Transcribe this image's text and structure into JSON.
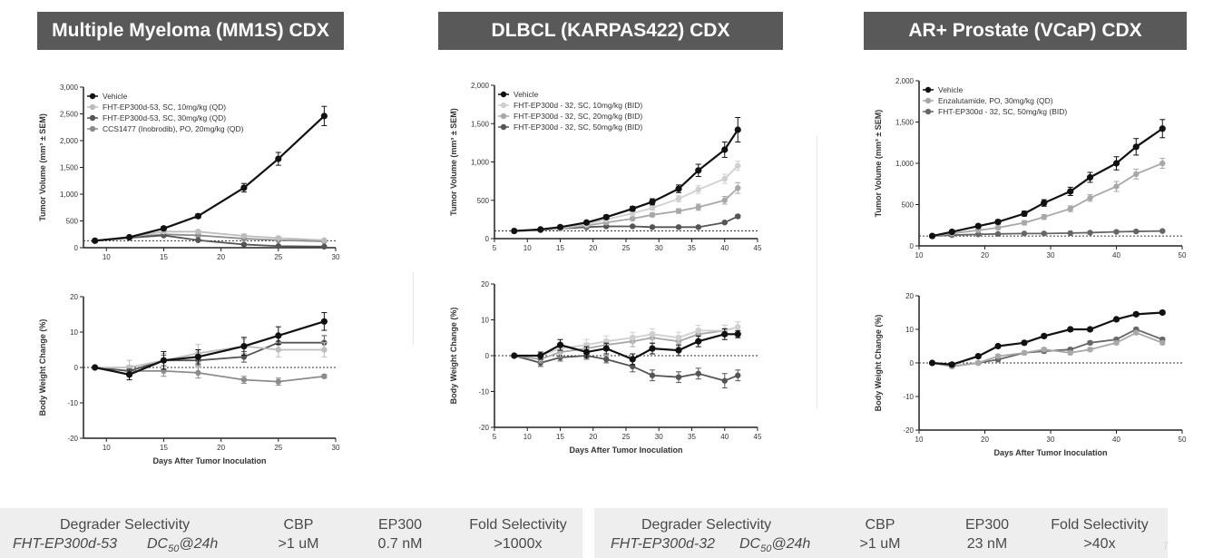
{
  "colors": {
    "banner": "#595959",
    "vehicle": "#111111",
    "dark_gray": "#555555",
    "mid_gray": "#8c8c8c",
    "light_gray": "#bdbdbd",
    "table_bg": "#eeeeee"
  },
  "panels": [
    {
      "title": "Multiple Myeloma (MM1S) CDX",
      "xlabel": "Days After Tumor Inoculation"
    },
    {
      "title": "DLBCL (KARPAS422) CDX",
      "xlabel": "Days After Tumor Inoculation"
    },
    {
      "title": "AR+ Prostate (VCaP) CDX",
      "xlabel": "Days After Tumor Inoculation"
    }
  ],
  "selectivity": [
    {
      "heading": "Degrader Selectivity",
      "compound": "FHT-EP300d-53",
      "dc50": "DC",
      "dc50_sub": "50",
      "dc50_suffix": "@24h",
      "cols": [
        {
          "header": "CBP",
          "value": ">1 uM"
        },
        {
          "header": "EP300",
          "value": "0.7 nM"
        },
        {
          "header": "Fold Selectivity",
          "value": ">1000x"
        }
      ]
    },
    {
      "heading": "Degrader Selectivity",
      "compound": "FHT-EP300d-32",
      "dc50": "DC",
      "dc50_sub": "50",
      "dc50_suffix": "@24h",
      "cols": [
        {
          "header": "CBP",
          "value": ">1 uM"
        },
        {
          "header": "EP300",
          "value": "23 nM"
        },
        {
          "header": "Fold Selectivity",
          "value": ">40x"
        }
      ]
    }
  ],
  "corner_label": "7",
  "chart_data": [
    {
      "type": "line",
      "panel": "Multiple Myeloma (MM1S) CDX",
      "xlabel": "",
      "ylabel": "Tumor Volume (mm³ ± SEM)",
      "xlim": [
        8,
        30
      ],
      "ylim": [
        0,
        3000
      ],
      "xticks": [
        10,
        15,
        20,
        25,
        30
      ],
      "yticks": [
        0,
        500,
        1000,
        1500,
        2000,
        2500,
        3000
      ],
      "ytick_labels": [
        "0",
        "500",
        "1,000",
        "1,500",
        "2,000",
        "2,500",
        "3,000"
      ],
      "reference_line": 130,
      "legend_position": "top-left",
      "x": [
        9,
        12,
        15,
        18,
        22,
        25,
        29
      ],
      "series": [
        {
          "name": "Vehicle",
          "color": "#111111",
          "values": [
            130,
            195,
            360,
            590,
            1120,
            1660,
            2460
          ],
          "errors": [
            15,
            25,
            35,
            40,
            80,
            120,
            180
          ]
        },
        {
          "name": "FHT-EP300d-53, SC, 10mg/kg (QD)",
          "color": "#bdbdbd",
          "values": [
            130,
            200,
            300,
            300,
            220,
            180,
            140
          ],
          "errors": [
            10,
            20,
            30,
            30,
            30,
            25,
            20
          ]
        },
        {
          "name": "FHT-EP300d-53, SC, 30mg/kg (QD)",
          "color": "#555555",
          "values": [
            130,
            185,
            230,
            140,
            60,
            30,
            20
          ],
          "errors": [
            10,
            15,
            20,
            20,
            15,
            10,
            10
          ]
        },
        {
          "name": "CCS1477 (Inobrodib), PO, 20mg/kg (QD)",
          "color": "#8c8c8c",
          "values": [
            130,
            190,
            250,
            230,
            170,
            140,
            120
          ],
          "errors": [
            10,
            15,
            25,
            25,
            20,
            20,
            15
          ]
        }
      ]
    },
    {
      "type": "line",
      "panel": "Multiple Myeloma (MM1S) CDX",
      "xlabel": "Days After Tumor Inoculation",
      "ylabel": "Body Weight Change (%)",
      "xlim": [
        8,
        30
      ],
      "ylim": [
        -20,
        20
      ],
      "xticks": [
        10,
        15,
        20,
        25,
        30
      ],
      "yticks": [
        -20,
        -10,
        0,
        10,
        20
      ],
      "reference_line": 0,
      "x": [
        9,
        12,
        15,
        18,
        22,
        25,
        29
      ],
      "series": [
        {
          "name": "Vehicle",
          "color": "#111111",
          "values": [
            0,
            -2,
            2,
            3,
            6,
            9,
            13
          ],
          "errors": [
            0,
            1.5,
            2.5,
            2,
            2.5,
            2.5,
            2.5
          ]
        },
        {
          "name": "FHT-EP300d-53, SC, 10mg/kg (QD)",
          "color": "#bdbdbd",
          "values": [
            0,
            0,
            2,
            4,
            6,
            5,
            5
          ],
          "errors": [
            0,
            2,
            2,
            2.5,
            2,
            2,
            2
          ]
        },
        {
          "name": "FHT-EP300d-53, SC, 30mg/kg (QD)",
          "color": "#555555",
          "values": [
            0,
            -1,
            2,
            2,
            3,
            7,
            7
          ],
          "errors": [
            0,
            1.5,
            1.5,
            1.5,
            1.5,
            2,
            2
          ]
        },
        {
          "name": "CCS1477 (Inobrodib), PO, 20mg/kg (QD)",
          "color": "#8c8c8c",
          "values": [
            0,
            -1,
            -1,
            -1.5,
            -3.5,
            -4,
            -2.5
          ],
          "errors": [
            0,
            1,
            1.5,
            1.5,
            1,
            1,
            0.5
          ]
        }
      ]
    },
    {
      "type": "line",
      "panel": "DLBCL (KARPAS422) CDX",
      "xlabel": "",
      "ylabel": "Tumor Volume (mm³ ± SEM)",
      "xlim": [
        5,
        45
      ],
      "ylim": [
        0,
        2000
      ],
      "xticks": [
        5,
        10,
        15,
        20,
        25,
        30,
        35,
        40,
        45
      ],
      "yticks": [
        0,
        500,
        1000,
        1500,
        2000
      ],
      "ytick_labels": [
        "0",
        "500",
        "1,000",
        "1,500",
        "2,000"
      ],
      "reference_line": 100,
      "legend_position": "top-left",
      "x": [
        8,
        12,
        15,
        19,
        22,
        26,
        29,
        33,
        36,
        40,
        42
      ],
      "series": [
        {
          "name": "Vehicle",
          "color": "#111111",
          "values": [
            100,
            120,
            150,
            210,
            280,
            390,
            480,
            650,
            890,
            1160,
            1420
          ],
          "errors": [
            10,
            10,
            15,
            20,
            25,
            30,
            40,
            50,
            80,
            100,
            160
          ]
        },
        {
          "name": "FHT-EP300d - 32, SC, 10mg/kg (BID)",
          "color": "#cfcfcf",
          "values": [
            100,
            115,
            140,
            190,
            250,
            330,
            400,
            520,
            640,
            780,
            950
          ],
          "errors": [
            10,
            10,
            15,
            15,
            20,
            25,
            30,
            40,
            50,
            60,
            60
          ]
        },
        {
          "name": "FHT-EP300d - 32, SC, 20mg/kg (BID)",
          "color": "#a8a8a8",
          "values": [
            100,
            110,
            130,
            170,
            210,
            260,
            310,
            360,
            410,
            500,
            660
          ],
          "errors": [
            10,
            10,
            10,
            15,
            15,
            20,
            25,
            30,
            40,
            50,
            70
          ]
        },
        {
          "name": "FHT-EP300d - 32, SC, 50mg/kg (BID)",
          "color": "#555555",
          "values": [
            100,
            110,
            130,
            150,
            160,
            160,
            150,
            150,
            150,
            210,
            290
          ],
          "errors": [
            10,
            10,
            10,
            10,
            10,
            10,
            10,
            10,
            10,
            15,
            20
          ]
        }
      ]
    },
    {
      "type": "line",
      "panel": "DLBCL (KARPAS422) CDX",
      "xlabel": "Days After Tumor Inoculation",
      "ylabel": "Body Weight Change (%)",
      "xlim": [
        5,
        45
      ],
      "ylim": [
        -20,
        20
      ],
      "xticks": [
        5,
        10,
        15,
        20,
        25,
        30,
        35,
        40,
        45
      ],
      "yticks": [
        -20,
        -10,
        0,
        10,
        20
      ],
      "reference_line": 0,
      "x": [
        8,
        12,
        15,
        19,
        22,
        26,
        29,
        33,
        36,
        40,
        42
      ],
      "series": [
        {
          "name": "Vehicle",
          "color": "#111111",
          "values": [
            0,
            0,
            3,
            1,
            2,
            -1,
            2,
            1.5,
            4,
            6,
            6
          ],
          "errors": [
            0,
            1,
            1.5,
            1.5,
            1.5,
            1.5,
            1.5,
            1.5,
            1.5,
            1.5,
            1
          ]
        },
        {
          "name": "FHT-EP300d - 32, SC, 10mg/kg (BID)",
          "color": "#cfcfcf",
          "values": [
            0,
            0,
            2,
            3,
            4,
            5,
            6,
            5,
            7,
            7,
            8
          ],
          "errors": [
            0,
            1,
            1.5,
            1.5,
            1.5,
            1.5,
            1.5,
            1.5,
            1.5,
            1.5,
            1.5
          ]
        },
        {
          "name": "FHT-EP300d - 32, SC, 20mg/kg (BID)",
          "color": "#a8a8a8",
          "values": [
            0,
            -1,
            1,
            2,
            3,
            4,
            5,
            4,
            6,
            7,
            8
          ],
          "errors": [
            0,
            1,
            1.5,
            1.5,
            1.5,
            1.5,
            1.5,
            1.5,
            1.5,
            1.5,
            1.5
          ]
        },
        {
          "name": "FHT-EP300d - 32, SC, 50mg/kg (BID)",
          "color": "#555555",
          "values": [
            0,
            -2,
            -0.5,
            0,
            -1,
            -3,
            -5.5,
            -6,
            -5,
            -7,
            -5.5
          ],
          "errors": [
            0,
            1,
            1,
            1,
            1,
            1.5,
            1.5,
            1.5,
            1.5,
            2,
            1.5
          ]
        }
      ]
    },
    {
      "type": "line",
      "panel": "AR+ Prostate (VCaP) CDX",
      "xlabel": "",
      "ylabel": "Tumor Volume (mm³ ± SEM)",
      "xlim": [
        10,
        50
      ],
      "ylim": [
        0,
        2000
      ],
      "xticks": [
        10,
        20,
        30,
        40,
        50
      ],
      "yticks": [
        0,
        500,
        1000,
        1500,
        2000
      ],
      "ytick_labels": [
        "0",
        "500",
        "1,000",
        "1,500",
        "2,000"
      ],
      "reference_line": 120,
      "legend_position": "top-left",
      "x": [
        12,
        15,
        19,
        22,
        26,
        29,
        33,
        36,
        40,
        43,
        47
      ],
      "series": [
        {
          "name": "Vehicle",
          "color": "#111111",
          "values": [
            120,
            170,
            240,
            290,
            390,
            520,
            660,
            830,
            1000,
            1200,
            1420
          ],
          "errors": [
            10,
            15,
            20,
            25,
            30,
            40,
            50,
            60,
            80,
            100,
            110
          ]
        },
        {
          "name": "Enzalutamide, PO, 30mg/kg (QD)",
          "color": "#a8a8a8",
          "values": [
            120,
            150,
            190,
            220,
            280,
            350,
            450,
            580,
            720,
            870,
            1000
          ],
          "errors": [
            10,
            10,
            15,
            20,
            25,
            30,
            35,
            40,
            60,
            60,
            60
          ]
        },
        {
          "name": "FHT-EP300d - 32, SC, 50mg/kg (BID)",
          "color": "#666666",
          "values": [
            120,
            130,
            140,
            145,
            150,
            150,
            155,
            160,
            170,
            175,
            180
          ],
          "errors": [
            10,
            10,
            10,
            10,
            10,
            10,
            10,
            10,
            10,
            10,
            10
          ]
        }
      ]
    },
    {
      "type": "line",
      "panel": "AR+ Prostate (VCaP) CDX",
      "xlabel": "Days After Tumor Inoculation",
      "ylabel": "Body Weight Change (%)",
      "xlim": [
        10,
        50
      ],
      "ylim": [
        -20,
        20
      ],
      "xticks": [
        10,
        20,
        30,
        40,
        50
      ],
      "yticks": [
        -20,
        -10,
        0,
        10,
        20
      ],
      "reference_line": 0,
      "x": [
        12,
        15,
        19,
        22,
        26,
        29,
        33,
        36,
        40,
        43,
        47
      ],
      "series": [
        {
          "name": "Vehicle",
          "color": "#111111",
          "values": [
            0,
            -0.5,
            2,
            5,
            6,
            8,
            10,
            10,
            13,
            14.5,
            15
          ],
          "errors": [
            0,
            0.5,
            0.5,
            0.5,
            0.5,
            0.5,
            0.5,
            0.5,
            0.5,
            0.5,
            0.5
          ]
        },
        {
          "name": "Enzalutamide, PO, 30mg/kg (QD)",
          "color": "#a8a8a8",
          "values": [
            0,
            -1,
            0,
            2,
            3,
            4,
            3,
            4,
            6,
            9,
            6
          ],
          "errors": [
            0,
            0.5,
            0.5,
            0.5,
            0.5,
            0.5,
            0.5,
            0.5,
            0.5,
            0.5,
            0.5
          ]
        },
        {
          "name": "FHT-EP300d - 32, SC, 50mg/kg (BID)",
          "color": "#666666",
          "values": [
            0,
            -1,
            0,
            1,
            3,
            3.5,
            4,
            6,
            7,
            10,
            7
          ],
          "errors": [
            0,
            0.5,
            0.5,
            0.5,
            0.5,
            0.5,
            0.5,
            0.5,
            0.5,
            0.5,
            0.5
          ]
        }
      ]
    }
  ]
}
